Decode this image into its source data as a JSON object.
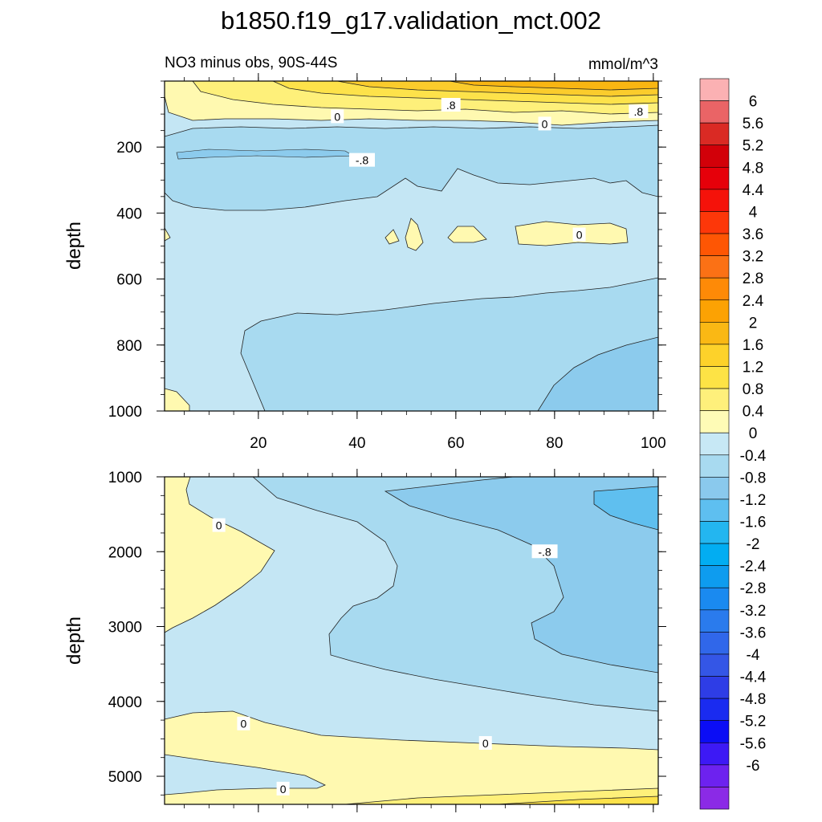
{
  "title": "b1850.f19_g17.validation_mct.002",
  "subtitle_left": "NO3 minus obs, 90S-44S",
  "subtitle_right": "mmol/m^3",
  "colors": {
    "pos_04": "#fff9b0",
    "pos_08": "#fef07a",
    "pos_12": "#fde24a",
    "pos_16": "#fbcc2c",
    "pos_20": "#f9b612",
    "neg_04": "#c4e6f4",
    "neg_08": "#a8daf0",
    "neg_12": "#8ccbed",
    "neg_16": "#5fbfef",
    "line": "#222222"
  },
  "chart_data": [
    {
      "type": "contour",
      "panel": "upper",
      "x_ticks": [
        20,
        40,
        60,
        80,
        100
      ],
      "xlim": [
        1,
        101
      ],
      "y_ticks": [
        200,
        400,
        600,
        800,
        1000
      ],
      "ylim": [
        0,
        1000
      ],
      "ylabel": "depth",
      "contour_labels": [
        {
          "text": "0",
          "x": 36,
          "y": 108
        },
        {
          "text": ".8",
          "x": 59,
          "y": 73
        },
        {
          "text": "0",
          "x": 78,
          "y": 130
        },
        {
          "text": ".8",
          "x": 97,
          "y": 93
        },
        {
          "text": "-.8",
          "x": 41,
          "y": 240
        },
        {
          "text": "0",
          "x": 85,
          "y": 466
        }
      ]
    },
    {
      "type": "contour",
      "panel": "lower",
      "x_ticks": [
        20,
        40,
        60,
        80,
        100
      ],
      "xlim": [
        1,
        101
      ],
      "y_ticks": [
        1000,
        2000,
        3000,
        4000,
        5000
      ],
      "ylim": [
        1000,
        5375
      ],
      "ylabel": "depth",
      "contour_labels": [
        {
          "text": "0",
          "x": 12,
          "y": 1650
        },
        {
          "text": "-.8",
          "x": 78,
          "y": 2000
        },
        {
          "text": "0",
          "x": 17,
          "y": 4300
        },
        {
          "text": "0",
          "x": 66,
          "y": 4560
        },
        {
          "text": "0",
          "x": 25,
          "y": 5170
        }
      ]
    }
  ],
  "colorbar": {
    "labels": [
      "6",
      "5.6",
      "5.2",
      "4.8",
      "4.4",
      "4",
      "3.6",
      "3.2",
      "2.8",
      "2.4",
      "2",
      "1.6",
      "1.2",
      "0.8",
      "0.4",
      "0",
      "-0.4",
      "-0.8",
      "-1.2",
      "-1.6",
      "-2",
      "-2.4",
      "-2.8",
      "-3.2",
      "-3.6",
      "-4",
      "-4.4",
      "-4.8",
      "-5.2",
      "-5.6",
      "-6"
    ],
    "colors": [
      "#fbb1b3",
      "#ea6466",
      "#da2a24",
      "#d20009",
      "#e6000a",
      "#f5120a",
      "#fd3709",
      "#fe5604",
      "#fb7115",
      "#fe8a07",
      "#fca203",
      "#fab814",
      "#fdd22a",
      "#fde345",
      "#fef07b",
      "#fefbb6",
      "#c7e8f5",
      "#a8daf0",
      "#8ac9ed",
      "#5ebff0",
      "#23b6f0",
      "#02adf2",
      "#0e9cef",
      "#1a8af0",
      "#2a7bed",
      "#3067ea",
      "#3456e6",
      "#2e3de6",
      "#1a2bf0",
      "#0b0df5",
      "#3d19f5",
      "#6d22ef",
      "#8b2ae6"
    ]
  }
}
